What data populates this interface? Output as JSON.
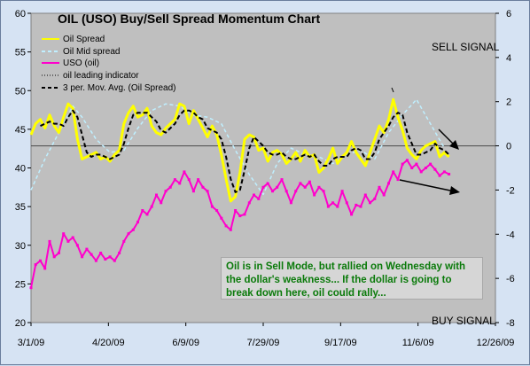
{
  "chart_data": {
    "type": "line",
    "title": "OIL (USO) Buy/Sell Spread Momentum Chart",
    "x_ticks": [
      "3/1/09",
      "4/20/09",
      "6/9/09",
      "7/29/09",
      "9/17/09",
      "11/6/09",
      "12/26/09"
    ],
    "x_range": [
      "2009-03-01",
      "2009-12-26"
    ],
    "y_left": {
      "range": [
        20,
        60
      ],
      "ticks": [
        20,
        25,
        30,
        35,
        40,
        45,
        50,
        55,
        60
      ]
    },
    "y_right": {
      "range": [
        -8,
        6
      ],
      "ticks": [
        -8,
        -6,
        -4,
        -2,
        0,
        2,
        4,
        6
      ]
    },
    "grid": false,
    "zero_line_right_axis": 0,
    "legend": {
      "placement": "top-left",
      "entries": [
        "Oil Spread",
        "Oil Mid spread",
        "USO (oil)",
        "oil leading indicator",
        "3 per. Mov. Avg. (Oil Spread)"
      ]
    },
    "series": [
      {
        "name": "Oil Spread",
        "axis": "right",
        "color": "#ffff00",
        "style": "solid",
        "x": [
          "2009-03-01",
          "2009-03-04",
          "2009-03-07",
          "2009-03-10",
          "2009-03-13",
          "2009-03-16",
          "2009-03-19",
          "2009-03-22",
          "2009-03-25",
          "2009-03-28",
          "2009-03-31",
          "2009-04-03",
          "2009-04-06",
          "2009-04-09",
          "2009-04-12",
          "2009-04-15",
          "2009-04-18",
          "2009-04-21",
          "2009-04-24",
          "2009-04-27",
          "2009-04-30",
          "2009-05-03",
          "2009-05-06",
          "2009-05-09",
          "2009-05-12",
          "2009-05-15",
          "2009-05-18",
          "2009-05-21",
          "2009-05-24",
          "2009-05-27",
          "2009-05-30",
          "2009-06-02",
          "2009-06-05",
          "2009-06-08",
          "2009-06-11",
          "2009-06-14",
          "2009-06-17",
          "2009-06-20",
          "2009-06-23",
          "2009-06-26",
          "2009-06-29",
          "2009-07-02",
          "2009-07-05",
          "2009-07-08",
          "2009-07-11",
          "2009-07-14",
          "2009-07-17",
          "2009-07-20",
          "2009-07-23",
          "2009-07-26",
          "2009-07-29",
          "2009-08-01",
          "2009-08-04",
          "2009-08-07",
          "2009-08-10",
          "2009-08-13",
          "2009-08-16",
          "2009-08-19",
          "2009-08-22",
          "2009-08-25",
          "2009-08-28",
          "2009-08-31",
          "2009-09-03",
          "2009-09-06",
          "2009-09-09",
          "2009-09-12",
          "2009-09-15",
          "2009-09-18",
          "2009-09-21",
          "2009-09-24",
          "2009-09-27",
          "2009-09-30",
          "2009-10-03",
          "2009-10-06",
          "2009-10-09",
          "2009-10-12",
          "2009-10-15",
          "2009-10-18",
          "2009-10-21",
          "2009-10-24",
          "2009-10-27",
          "2009-10-30",
          "2009-11-02",
          "2009-11-05",
          "2009-11-08",
          "2009-11-11",
          "2009-11-14",
          "2009-11-17",
          "2009-11-20",
          "2009-11-23",
          "2009-11-26"
        ],
        "y": [
          0.5,
          1.0,
          1.2,
          0.8,
          1.4,
          0.9,
          0.6,
          1.3,
          1.9,
          1.7,
          0.3,
          -0.6,
          -0.5,
          -0.4,
          -0.3,
          -0.6,
          -0.5,
          -0.7,
          -0.4,
          -0.2,
          1.0,
          1.5,
          1.8,
          1.3,
          1.4,
          1.7,
          0.9,
          0.6,
          0.5,
          0.8,
          1.0,
          1.2,
          1.9,
          1.8,
          1.0,
          1.6,
          1.2,
          0.8,
          0.4,
          0.9,
          0.5,
          -0.4,
          -1.5,
          -2.5,
          -2.3,
          -1.2,
          0.3,
          0.5,
          0.4,
          -0.2,
          -0.1,
          -0.7,
          -0.3,
          -0.2,
          -0.4,
          -0.8,
          -0.6,
          -0.3,
          -0.7,
          -0.2,
          -0.5,
          -0.4,
          -1.2,
          -1.0,
          -0.6,
          -0.1,
          -0.8,
          -0.5,
          -0.3,
          0.2,
          -0.3,
          -0.6,
          -0.9,
          -0.3,
          0.3,
          0.9,
          0.6,
          1.2,
          2.1,
          1.3,
          0.7,
          -0.1,
          -0.4,
          -0.6,
          -0.2,
          0.0,
          0.1,
          0.2,
          -0.5,
          -0.3,
          -0.5
        ]
      },
      {
        "name": "Oil Mid spread",
        "axis": "right",
        "color": "#bfefff",
        "style": "dashed",
        "x": [
          "2009-03-01",
          "2009-03-10",
          "2009-03-19",
          "2009-03-28",
          "2009-04-03",
          "2009-04-12",
          "2009-04-21",
          "2009-04-30",
          "2009-05-09",
          "2009-05-18",
          "2009-05-27",
          "2009-06-05",
          "2009-06-14",
          "2009-06-23",
          "2009-07-02",
          "2009-07-11",
          "2009-07-20",
          "2009-07-29",
          "2009-08-07",
          "2009-08-16",
          "2009-08-25",
          "2009-09-03",
          "2009-09-12",
          "2009-09-21",
          "2009-09-30",
          "2009-10-09",
          "2009-10-18",
          "2009-10-27",
          "2009-11-05",
          "2009-11-14",
          "2009-11-23"
        ],
        "y": [
          -2.0,
          -0.6,
          0.6,
          1.8,
          1.3,
          0.3,
          -0.3,
          -0.2,
          0.8,
          1.6,
          1.9,
          1.8,
          1.4,
          1.3,
          1.0,
          -0.2,
          -1.3,
          -2.2,
          -0.8,
          -0.1,
          -0.4,
          -0.5,
          -0.8,
          -0.4,
          -0.2,
          -0.6,
          0.6,
          1.4,
          2.1,
          1.0,
          -0.1
        ]
      },
      {
        "name": "USO (oil)",
        "axis": "left",
        "color": "#ff00cc",
        "style": "solid",
        "x": [
          "2009-03-01",
          "2009-03-04",
          "2009-03-07",
          "2009-03-10",
          "2009-03-13",
          "2009-03-16",
          "2009-03-19",
          "2009-03-22",
          "2009-03-25",
          "2009-03-28",
          "2009-03-31",
          "2009-04-03",
          "2009-04-06",
          "2009-04-09",
          "2009-04-12",
          "2009-04-15",
          "2009-04-18",
          "2009-04-21",
          "2009-04-24",
          "2009-04-27",
          "2009-04-30",
          "2009-05-03",
          "2009-05-06",
          "2009-05-09",
          "2009-05-12",
          "2009-05-15",
          "2009-05-18",
          "2009-05-21",
          "2009-05-24",
          "2009-05-27",
          "2009-05-30",
          "2009-06-02",
          "2009-06-05",
          "2009-06-08",
          "2009-06-11",
          "2009-06-14",
          "2009-06-17",
          "2009-06-20",
          "2009-06-23",
          "2009-06-26",
          "2009-06-29",
          "2009-07-02",
          "2009-07-05",
          "2009-07-08",
          "2009-07-11",
          "2009-07-14",
          "2009-07-17",
          "2009-07-20",
          "2009-07-23",
          "2009-07-26",
          "2009-07-29",
          "2009-08-01",
          "2009-08-04",
          "2009-08-07",
          "2009-08-10",
          "2009-08-13",
          "2009-08-16",
          "2009-08-19",
          "2009-08-22",
          "2009-08-25",
          "2009-08-28",
          "2009-08-31",
          "2009-09-03",
          "2009-09-06",
          "2009-09-09",
          "2009-09-12",
          "2009-09-15",
          "2009-09-18",
          "2009-09-21",
          "2009-09-24",
          "2009-09-27",
          "2009-09-30",
          "2009-10-03",
          "2009-10-06",
          "2009-10-09",
          "2009-10-12",
          "2009-10-15",
          "2009-10-18",
          "2009-10-21",
          "2009-10-24",
          "2009-10-27",
          "2009-10-30",
          "2009-11-02",
          "2009-11-05",
          "2009-11-08",
          "2009-11-11",
          "2009-11-14",
          "2009-11-17",
          "2009-11-20",
          "2009-11-23",
          "2009-11-26"
        ],
        "y": [
          24.5,
          27.5,
          28.0,
          27.0,
          30.5,
          28.5,
          29.0,
          31.5,
          30.5,
          31.0,
          30.0,
          28.5,
          29.5,
          28.8,
          28.0,
          29.0,
          28.2,
          28.5,
          28.0,
          29.0,
          30.5,
          31.5,
          32.0,
          33.0,
          34.5,
          34.0,
          35.0,
          36.5,
          35.5,
          37.0,
          37.5,
          38.5,
          38.0,
          39.5,
          38.5,
          37.0,
          38.5,
          37.5,
          37.0,
          35.0,
          34.5,
          33.5,
          32.5,
          32.0,
          34.5,
          33.8,
          34.0,
          35.5,
          36.5,
          36.0,
          37.5,
          38.0,
          37.0,
          37.5,
          38.5,
          37.0,
          35.5,
          37.0,
          38.0,
          37.5,
          38.2,
          36.5,
          37.5,
          37.0,
          35.0,
          35.5,
          35.0,
          37.0,
          35.5,
          34.0,
          35.2,
          35.0,
          36.5,
          35.5,
          36.0,
          37.5,
          36.5,
          38.0,
          39.5,
          38.5,
          40.5,
          41.0,
          40.0,
          40.5,
          39.5,
          40.0,
          40.5,
          39.8,
          39.0,
          39.5,
          39.2
        ]
      },
      {
        "name": "3 per. Mov. Avg. (Oil Spread)",
        "axis": "right",
        "color": "#000000",
        "style": "dashed",
        "x": [
          "2009-03-07",
          "2009-03-10",
          "2009-03-13",
          "2009-03-16",
          "2009-03-19",
          "2009-03-22",
          "2009-03-25",
          "2009-03-28",
          "2009-03-31",
          "2009-04-03",
          "2009-04-06",
          "2009-04-09",
          "2009-04-12",
          "2009-04-15",
          "2009-04-18",
          "2009-04-21",
          "2009-04-24",
          "2009-04-27",
          "2009-04-30",
          "2009-05-03",
          "2009-05-06",
          "2009-05-09",
          "2009-05-12",
          "2009-05-15",
          "2009-05-18",
          "2009-05-21",
          "2009-05-24",
          "2009-05-27",
          "2009-05-30",
          "2009-06-02",
          "2009-06-05",
          "2009-06-08",
          "2009-06-11",
          "2009-06-14",
          "2009-06-17",
          "2009-06-20",
          "2009-06-23",
          "2009-06-26",
          "2009-06-29",
          "2009-07-02",
          "2009-07-05",
          "2009-07-08",
          "2009-07-11",
          "2009-07-14",
          "2009-07-17",
          "2009-07-20",
          "2009-07-23",
          "2009-07-26",
          "2009-07-29",
          "2009-08-01",
          "2009-08-04",
          "2009-08-07",
          "2009-08-10",
          "2009-08-13",
          "2009-08-16",
          "2009-08-19",
          "2009-08-22",
          "2009-08-25",
          "2009-08-28",
          "2009-08-31",
          "2009-09-03",
          "2009-09-06",
          "2009-09-09",
          "2009-09-12",
          "2009-09-15",
          "2009-09-18",
          "2009-09-21",
          "2009-09-24",
          "2009-09-27",
          "2009-09-30",
          "2009-10-03",
          "2009-10-06",
          "2009-10-09",
          "2009-10-12",
          "2009-10-15",
          "2009-10-18",
          "2009-10-21",
          "2009-10-24",
          "2009-10-27",
          "2009-10-30",
          "2009-11-02",
          "2009-11-05",
          "2009-11-08",
          "2009-11-11",
          "2009-11-14",
          "2009-11-17",
          "2009-11-20",
          "2009-11-23",
          "2009-11-26"
        ],
        "y": [
          0.9,
          1.0,
          1.1,
          1.0,
          1.0,
          0.9,
          1.3,
          1.6,
          1.3,
          0.5,
          -0.3,
          -0.5,
          -0.4,
          -0.4,
          -0.5,
          -0.6,
          -0.5,
          -0.4,
          0.1,
          0.8,
          1.4,
          1.5,
          1.5,
          1.5,
          1.3,
          1.1,
          0.7,
          0.6,
          0.8,
          1.0,
          1.4,
          1.6,
          1.6,
          1.5,
          1.3,
          1.2,
          0.8,
          0.7,
          0.6,
          0.3,
          -0.5,
          -1.5,
          -2.1,
          -2.0,
          -1.1,
          -0.1,
          0.4,
          0.2,
          0.0,
          -0.3,
          -0.4,
          -0.4,
          -0.3,
          -0.5,
          -0.6,
          -0.6,
          -0.5,
          -0.4,
          -0.5,
          -0.4,
          -0.7,
          -0.9,
          -0.9,
          -0.6,
          -0.5,
          -0.5,
          -0.5,
          -0.2,
          -0.1,
          -0.2,
          -0.6,
          -0.6,
          -0.3,
          0.3,
          0.6,
          0.9,
          1.3,
          1.5,
          1.4,
          0.6,
          0.1,
          -0.4,
          -0.4,
          -0.3,
          -0.2,
          0.1,
          -0.1,
          -0.2,
          -0.4
        ]
      },
      {
        "name": "oil leading indicator",
        "axis": "right",
        "color": "#000000",
        "style": "dotted",
        "x": [],
        "y": []
      }
    ],
    "annotations": {
      "sell_signal": "SELL SIGNAL",
      "buy_signal": "BUY SIGNAL",
      "note": "Oil is in Sell Mode, but rallied on Wednesday with the dollar's weakness...   If the dollar is going to break down here, oil could rally..."
    }
  }
}
